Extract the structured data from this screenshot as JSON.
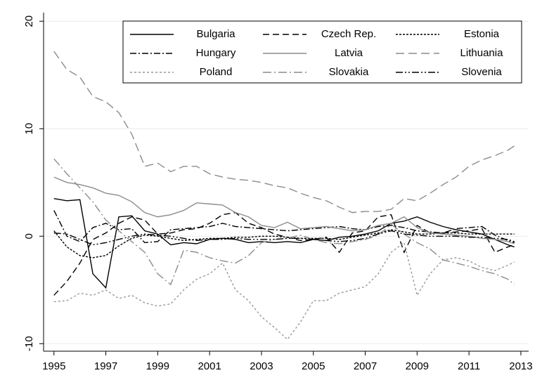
{
  "chart_data": {
    "type": "line",
    "x": [
      1995,
      1995.5,
      1996,
      1996.5,
      1997,
      1997.5,
      1998,
      1998.5,
      1999,
      1999.5,
      2000,
      2000.5,
      2001,
      2001.5,
      2002,
      2002.5,
      2003,
      2003.5,
      2004,
      2004.5,
      2005,
      2005.5,
      2006,
      2006.5,
      2007,
      2007.5,
      2008,
      2008.5,
      2009,
      2009.5,
      2010,
      2010.5,
      2011,
      2011.5,
      2012,
      2012.5,
      2012.75
    ],
    "series": [
      {
        "name": "Bulgaria",
        "color": "#000000",
        "dash": "",
        "values": [
          3.5,
          3.3,
          3.4,
          -3.5,
          -4.8,
          1.8,
          1.9,
          0.5,
          0.2,
          -0.8,
          -0.6,
          -0.7,
          -0.3,
          -0.2,
          -0.3,
          -0.6,
          -0.5,
          -0.6,
          -0.5,
          -0.6,
          -0.3,
          -0.4,
          -0.1,
          0.0,
          0.2,
          0.5,
          1.2,
          1.4,
          1.8,
          1.3,
          0.9,
          0.6,
          0.4,
          0.2,
          -0.3,
          -0.8,
          -1.0
        ]
      },
      {
        "name": "Czech Rep.",
        "color": "#000000",
        "dash": "9 5",
        "values": [
          -5.5,
          -4.2,
          -2.5,
          -0.3,
          0.3,
          1.2,
          1.8,
          1.5,
          0.2,
          0.3,
          0.6,
          0.7,
          1.2,
          2.0,
          2.2,
          1.2,
          0.8,
          0.2,
          -0.1,
          -0.4,
          -0.3,
          -0.1,
          -1.5,
          0.3,
          0.5,
          1.8,
          2.0,
          -1.5,
          1.0,
          0.3,
          0.3,
          0.4,
          0.5,
          0.7,
          -1.5,
          -1.0,
          -0.8
        ]
      },
      {
        "name": "Estonia",
        "color": "#000000",
        "dash": "3 2",
        "values": [
          0.5,
          -1.0,
          -1.8,
          -2.0,
          -1.8,
          -0.9,
          -0.2,
          0.1,
          0.0,
          -0.2,
          -0.4,
          -0.3,
          -0.2,
          -0.2,
          -0.1,
          -0.1,
          0.0,
          0.0,
          -0.1,
          -0.2,
          -0.2,
          -0.2,
          -0.3,
          -0.1,
          0.1,
          0.3,
          0.6,
          0.4,
          0.2,
          0.2,
          0.3,
          0.3,
          0.2,
          0.2,
          0.2,
          0.2,
          0.2
        ]
      },
      {
        "name": "Hungary",
        "color": "#000000",
        "dash": "9 3 2 3",
        "values": [
          2.4,
          0.0,
          -0.5,
          0.8,
          1.2,
          0.6,
          0.7,
          -0.6,
          -0.5,
          0.6,
          0.7,
          0.8,
          0.9,
          1.2,
          0.9,
          0.8,
          0.7,
          0.6,
          0.5,
          0.6,
          0.7,
          0.8,
          0.9,
          0.7,
          0.6,
          0.9,
          1.0,
          0.8,
          0.5,
          0.4,
          0.3,
          0.7,
          0.8,
          0.9,
          0.1,
          -0.4,
          -0.6
        ]
      },
      {
        "name": "Latvia",
        "color": "#8c8c8c",
        "dash": "",
        "values": [
          5.5,
          5.0,
          4.8,
          4.5,
          4.0,
          3.8,
          3.2,
          2.2,
          1.8,
          2.0,
          2.4,
          3.1,
          3.0,
          2.9,
          2.2,
          1.8,
          1.0,
          0.8,
          1.3,
          0.7,
          0.8,
          0.9,
          0.7,
          0.5,
          0.6,
          1.0,
          1.2,
          1.8,
          0.8,
          0.3,
          0.2,
          0.1,
          0.0,
          -0.2,
          -0.3,
          -0.5,
          -0.7
        ]
      },
      {
        "name": "Lithuania",
        "color": "#8c8c8c",
        "dash": "12 6",
        "values": [
          17.2,
          15.5,
          14.8,
          13.0,
          12.5,
          11.5,
          9.5,
          6.5,
          6.8,
          6.0,
          6.5,
          6.5,
          5.8,
          5.5,
          5.3,
          5.2,
          5.0,
          4.7,
          4.5,
          4.0,
          3.6,
          3.3,
          2.7,
          2.2,
          2.3,
          2.3,
          2.5,
          3.5,
          3.3,
          4.0,
          4.8,
          5.5,
          6.5,
          7.1,
          7.5,
          8.0,
          8.4
        ]
      },
      {
        "name": "Poland",
        "color": "#9a9a9a",
        "dash": "3 3",
        "values": [
          -6.1,
          -6.0,
          -5.3,
          -5.5,
          -5.0,
          -5.8,
          -5.5,
          -6.2,
          -6.5,
          -6.3,
          -5.0,
          -4.0,
          -3.5,
          -2.5,
          -5.0,
          -6.0,
          -7.5,
          -8.5,
          -9.6,
          -8.0,
          -6.0,
          -6.0,
          -5.3,
          -5.0,
          -4.7,
          -3.5,
          -1.5,
          -0.6,
          -5.5,
          -3.5,
          -2.2,
          -2.0,
          -2.3,
          -2.9,
          -3.2,
          -2.7,
          -2.4
        ]
      },
      {
        "name": "Slovakia",
        "color": "#8c8c8c",
        "dash": "12 4 2 4",
        "values": [
          7.2,
          5.8,
          4.5,
          3.2,
          1.5,
          0.5,
          -0.5,
          -1.5,
          -3.5,
          -4.5,
          -1.3,
          -1.5,
          -2.0,
          -2.3,
          -2.5,
          -1.8,
          -0.6,
          -0.3,
          -0.2,
          0.1,
          -0.3,
          -0.6,
          -0.7,
          -0.5,
          -0.3,
          0.1,
          1.1,
          0.2,
          -0.6,
          -1.2,
          -2.2,
          -2.5,
          -2.8,
          -3.2,
          -3.5,
          -4.0,
          -4.5
        ]
      },
      {
        "name": "Slovenia",
        "color": "#000000",
        "dash": "10 3 2 3 2 3",
        "values": [
          0.3,
          0.2,
          -0.3,
          -0.8,
          -0.6,
          -0.3,
          0.0,
          0.2,
          0.1,
          0.0,
          -0.2,
          -0.4,
          -0.3,
          -0.3,
          -0.2,
          -0.3,
          -0.3,
          -0.3,
          -0.2,
          -0.2,
          -0.3,
          -0.4,
          -0.5,
          -0.4,
          -0.2,
          0.2,
          0.5,
          0.2,
          0.1,
          0.0,
          0.0,
          0.0,
          -0.1,
          -0.1,
          -0.2,
          -0.3,
          -0.5
        ]
      }
    ],
    "xlim": [
      1994.6,
      2013.3
    ],
    "xticks": [
      1995,
      1997,
      1999,
      2001,
      2003,
      2005,
      2007,
      2009,
      2011,
      2013
    ],
    "ylim": [
      -10.7,
      20.8
    ],
    "yticks": [
      -10,
      0,
      10,
      20
    ],
    "grid": true
  }
}
